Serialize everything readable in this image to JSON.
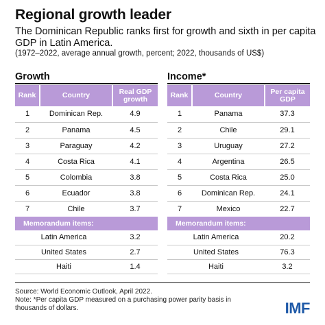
{
  "header": {
    "title": "Regional growth leader",
    "subtitle": "The Dominican Republic ranks first for growth and sixth in per capita GDP in Latin America.",
    "units": "(1972–2022, average annual growth, percent; 2022, thousands of US$)"
  },
  "chart_data": [
    {
      "type": "table",
      "title": "Growth",
      "columns": [
        "Rank",
        "Country",
        "Real GDP growth"
      ],
      "rows": [
        [
          "1",
          "Dominican Rep.",
          "4.9"
        ],
        [
          "2",
          "Panama",
          "4.5"
        ],
        [
          "3",
          "Paraguay",
          "4.2"
        ],
        [
          "4",
          "Costa Rica",
          "4.1"
        ],
        [
          "5",
          "Colombia",
          "3.8"
        ],
        [
          "6",
          "Ecuador",
          "3.8"
        ],
        [
          "7",
          "Chile",
          "3.7"
        ]
      ],
      "memo_title": "Memorandum items:",
      "memo_rows": [
        [
          "Latin America",
          "3.2"
        ],
        [
          "United States",
          "2.7"
        ],
        [
          "Haiti",
          "1.4"
        ]
      ]
    },
    {
      "type": "table",
      "title": "Income*",
      "columns": [
        "Rank",
        "Country",
        "Per capita GDP"
      ],
      "rows": [
        [
          "1",
          "Panama",
          "37.3"
        ],
        [
          "2",
          "Chile",
          "29.1"
        ],
        [
          "3",
          "Uruguay",
          "27.2"
        ],
        [
          "4",
          "Argentina",
          "26.5"
        ],
        [
          "5",
          "Costa Rica",
          "25.0"
        ],
        [
          "6",
          "Dominican Rep.",
          "24.1"
        ],
        [
          "7",
          "Mexico",
          "22.7"
        ]
      ],
      "memo_title": "Memorandum items:",
      "memo_rows": [
        [
          "Latin America",
          "20.2"
        ],
        [
          "United States",
          "76.3"
        ],
        [
          "Haiti",
          "3.2"
        ]
      ]
    }
  ],
  "footer": {
    "source": "Source: World Economic Outlook, April 2022.",
    "note": "Note: *Per capita GDP measured on a purchasing power parity basis in thousands of dollars.",
    "logo": "IMF"
  },
  "colors": {
    "header_fill": "#b99ad8",
    "logo": "#1f5aa8"
  }
}
